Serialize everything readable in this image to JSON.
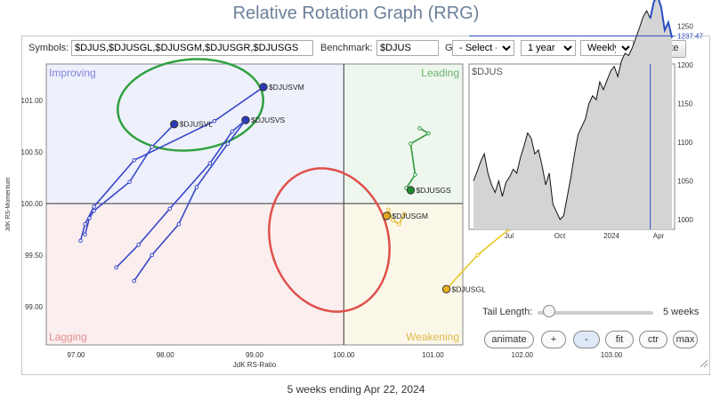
{
  "title": "Relative Rotation Graph (RRG)",
  "controls": {
    "symbols_label": "Symbols:",
    "symbols_value": "$DJUS,$DJUSGL,$DJUSGM,$DJUSGR,$DJUSGS",
    "benchmark_label": "Benchmark:",
    "benchmark_value": "$DJUS",
    "groups_label": "Groups:",
    "groups_value": "- Select -",
    "period_value": "1 year",
    "frequency_value": "Weekly",
    "update_label": "Update"
  },
  "rrg": {
    "quadrants": {
      "improving": "Improving",
      "leading": "Leading",
      "lagging": "Lagging",
      "weakening": "Weakening"
    },
    "quadrant_colors": {
      "improving": "#eef0fb",
      "leading": "#eef7ee",
      "lagging": "#fbeeee",
      "weakening": "#fbf8ea"
    },
    "xlabel": "JdK RS-Ratio",
    "ylabel": "JdK RS-Momentum",
    "xticks": [
      "97.00",
      "98.00",
      "99.00",
      "100.00",
      "101.00",
      "102.00",
      "103.00"
    ],
    "yticks": [
      "101.00",
      "100.50",
      "100.00",
      "99.50",
      "99.00"
    ]
  },
  "chart_data": [
    {
      "type": "scatter",
      "xlabel": "JdK RS-Ratio",
      "ylabel": "JdK RS-Momentum",
      "xlim": [
        96.5,
        103.5
      ],
      "ylim": [
        98.6,
        101.35
      ],
      "series": [
        {
          "name": "$DJUSVM",
          "color": "#3a48c8",
          "points": [
            [
              97.05,
              99.64
            ],
            [
              97.1,
              99.8
            ],
            [
              97.2,
              99.97
            ],
            [
              97.65,
              100.42
            ],
            [
              98.55,
              100.8
            ],
            [
              99.1,
              101.13
            ]
          ]
        },
        {
          "name": "$DJUSVL",
          "color": "#3a48c8",
          "points": [
            [
              97.1,
              99.7
            ],
            [
              97.15,
              99.86
            ],
            [
              97.2,
              99.93
            ],
            [
              97.6,
              100.21
            ],
            [
              97.85,
              100.55
            ],
            [
              98.1,
              100.77
            ]
          ]
        },
        {
          "name": "$DJUSVS",
          "color": "#3a48c8",
          "points": [
            [
              97.45,
              99.38
            ],
            [
              97.7,
              99.6
            ],
            [
              98.05,
              99.95
            ],
            [
              98.5,
              100.39
            ],
            [
              98.75,
              100.7
            ],
            [
              98.9,
              100.81
            ]
          ]
        },
        {
          "name": "",
          "color": "#3a48c8",
          "points": [
            [
              97.65,
              99.25
            ],
            [
              97.85,
              99.5
            ],
            [
              98.15,
              99.8
            ],
            [
              98.35,
              100.16
            ],
            [
              98.7,
              100.58
            ],
            [
              98.9,
              100.81
            ]
          ]
        },
        {
          "name": "$DJUSGS",
          "color": "#2f9a3c",
          "points": [
            [
              100.85,
              100.73
            ],
            [
              100.95,
              100.68
            ],
            [
              100.75,
              100.58
            ],
            [
              100.8,
              100.28
            ],
            [
              100.7,
              100.15
            ],
            [
              100.75,
              100.13
            ]
          ]
        },
        {
          "name": "$DJUSGM",
          "color": "#e8b828",
          "points": [
            [
              100.68,
              99.9
            ],
            [
              100.62,
              99.8
            ],
            [
              100.55,
              99.84
            ],
            [
              100.5,
              99.94
            ],
            [
              100.48,
              99.88
            ]
          ]
        },
        {
          "name": "$DJUSGL",
          "color": "#e8c828",
          "points": [
            [
              102.4,
              100.29
            ],
            [
              102.1,
              100.0
            ],
            [
              101.85,
              99.75
            ],
            [
              101.5,
              99.5
            ],
            [
              101.15,
              99.17
            ]
          ]
        }
      ],
      "labels": [
        "$DJUSVM",
        "$DJUSVL",
        "$DJUSVS",
        "$DJUSGS",
        "$DJUSGM",
        "$DJUSGL"
      ]
    },
    {
      "type": "area",
      "title": "$DJUS",
      "x_ticks": [
        "Jul",
        "Oct",
        "2024",
        "Apr"
      ],
      "y_ticks": [
        "1250",
        "1200",
        "1150",
        "1100",
        "1050",
        "1000"
      ],
      "ylim": [
        980,
        1305
      ],
      "current_value": "1237.47",
      "current_value_color": "#2b4cc8",
      "values": [
        1050,
        1062,
        1075,
        1085,
        1060,
        1045,
        1035,
        1050,
        1030,
        1048,
        1055,
        1065,
        1060,
        1080,
        1095,
        1112,
        1105,
        1085,
        1090,
        1070,
        1045,
        1060,
        1020,
        1010,
        1000,
        1005,
        1030,
        1055,
        1085,
        1110,
        1120,
        1130,
        1150,
        1160,
        1155,
        1178,
        1168,
        1180,
        1192,
        1198,
        1185,
        1205,
        1215,
        1212,
        1222,
        1235,
        1248,
        1262,
        1270,
        1260,
        1282,
        1289,
        1275,
        1245,
        1255,
        1235
      ],
      "highlight_from_index": 49
    }
  ],
  "tail_length": {
    "label": "Tail Length:",
    "value": "5 weeks",
    "level": 0.1
  },
  "buttons": {
    "animate": "animate",
    "plus": "+",
    "minus": "-",
    "fit": "fit",
    "ctr": "ctr",
    "max": "max"
  },
  "footer": "5 weeks ending Apr 22, 2024"
}
